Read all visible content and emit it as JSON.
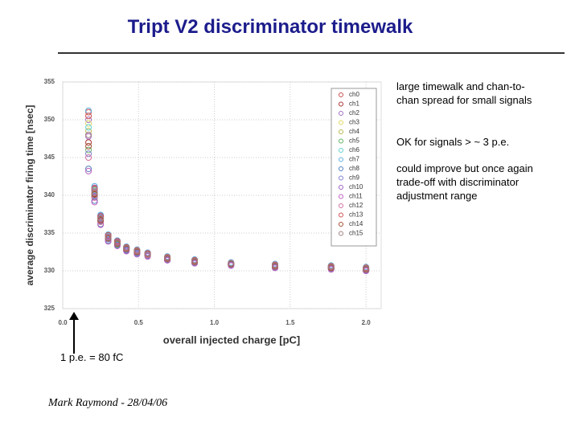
{
  "slide": {
    "title": "Tript V2 discriminator timewalk",
    "notes": [
      "large timewalk and chan-to-chan spread for small signals",
      "OK for signals > ~ 3 p.e.",
      "could improve but once again trade-off with discriminator adjustment range"
    ],
    "annotation": "1 p.e. = 80 fC",
    "footer": "Mark Raymond - 28/04/06"
  },
  "chart_data": {
    "type": "scatter",
    "x_label": "overall injected charge [pC]",
    "y_label": "average discriminator firing time [nsec]",
    "x": [
      0.17,
      0.21,
      0.25,
      0.3,
      0.36,
      0.42,
      0.49,
      0.56,
      0.69,
      0.87,
      1.11,
      1.4,
      1.77,
      2.0
    ],
    "xlim": [
      0,
      2.1
    ],
    "xticks": [
      {
        "value": 0,
        "label": "0.0"
      },
      0.5,
      {
        "value": 1,
        "label": "1.0"
      },
      1.5,
      {
        "value": 2,
        "label": "2.0"
      }
    ],
    "ylim": [
      325,
      355
    ],
    "yticks": [
      325,
      330,
      335,
      340,
      345,
      350,
      355
    ],
    "grid": true,
    "legend": "upper right",
    "series": [
      {
        "name": "ch0",
        "color": "#c85050",
        "values": [
          351,
          340.8,
          337.2,
          334.6,
          333.9,
          333.1,
          332.7,
          332.3,
          331.8,
          331.4,
          331.0,
          330.8,
          330.6,
          330.4
        ]
      },
      {
        "name": "ch1",
        "color": "#a83030",
        "values": [
          347,
          340.2,
          336.8,
          334.3,
          333.7,
          332.9,
          332.5,
          332.2,
          331.6,
          331.2,
          330.9,
          330.6,
          330.4,
          330.2
        ]
      },
      {
        "name": "ch2",
        "color": "#a070c0",
        "values": [
          350,
          341.0,
          337.3,
          334.7,
          334.0,
          333.1,
          332.7,
          332.4,
          331.8,
          331.4,
          331.1,
          330.8,
          330.6,
          330.4
        ]
      },
      {
        "name": "ch3",
        "color": "#e0d860",
        "values": [
          349.5,
          340.6,
          337.0,
          334.5,
          333.8,
          333.0,
          332.6,
          332.3,
          331.7,
          331.3,
          331.0,
          330.7,
          330.5,
          330.3
        ]
      },
      {
        "name": "ch4",
        "color": "#b8b850",
        "values": [
          348.5,
          340.4,
          336.9,
          334.4,
          333.7,
          332.9,
          332.5,
          332.2,
          331.6,
          331.2,
          330.9,
          330.6,
          330.4,
          330.2
        ]
      },
      {
        "name": "ch5",
        "color": "#60b060",
        "values": [
          346,
          339.8,
          336.5,
          334.2,
          333.5,
          332.8,
          332.4,
          332.1,
          331.5,
          331.1,
          330.8,
          330.5,
          330.3,
          330.1
        ]
      },
      {
        "name": "ch6",
        "color": "#60d0d0",
        "values": [
          349,
          340.7,
          337.1,
          334.6,
          333.9,
          333.0,
          332.6,
          332.3,
          331.7,
          331.3,
          331.0,
          330.7,
          330.5,
          330.3
        ]
      },
      {
        "name": "ch7",
        "color": "#60b0e0",
        "values": [
          351.2,
          341.2,
          337.4,
          334.8,
          334.0,
          333.2,
          332.8,
          332.4,
          331.9,
          331.5,
          331.1,
          330.9,
          330.7,
          330.5
        ]
      },
      {
        "name": "ch8",
        "color": "#5080c0",
        "values": [
          343.5,
          339.3,
          336.2,
          334.0,
          333.4,
          332.7,
          332.3,
          332.0,
          331.4,
          331.0,
          330.7,
          330.4,
          330.2,
          330.0
        ]
      },
      {
        "name": "ch9",
        "color": "#8080d0",
        "values": [
          345.5,
          339.9,
          336.6,
          334.2,
          333.6,
          332.8,
          332.4,
          332.1,
          331.5,
          331.1,
          330.8,
          330.5,
          330.3,
          330.1
        ]
      },
      {
        "name": "ch10",
        "color": "#a060c0",
        "values": [
          347.8,
          340.5,
          337.0,
          334.5,
          333.8,
          333.0,
          332.6,
          332.2,
          331.7,
          331.3,
          331.0,
          330.7,
          330.5,
          330.3
        ]
      },
      {
        "name": "ch11",
        "color": "#c060c0",
        "values": [
          343.2,
          339.1,
          336.1,
          333.9,
          333.3,
          332.6,
          332.2,
          331.9,
          331.4,
          331.0,
          330.7,
          330.4,
          330.2,
          330.0
        ]
      },
      {
        "name": "ch12",
        "color": "#d070a0",
        "values": [
          345,
          339.7,
          336.5,
          334.3,
          333.6,
          332.9,
          332.5,
          332.1,
          331.6,
          331.2,
          330.9,
          330.6,
          330.4,
          330.2
        ]
      },
      {
        "name": "ch13",
        "color": "#d05050",
        "values": [
          350.5,
          340.9,
          337.2,
          334.7,
          333.9,
          333.1,
          332.7,
          332.3,
          331.8,
          331.4,
          331.0,
          330.8,
          330.6,
          330.4
        ]
      },
      {
        "name": "ch14",
        "color": "#a05030",
        "values": [
          346.5,
          340.1,
          336.7,
          334.3,
          333.6,
          332.9,
          332.5,
          332.2,
          331.6,
          331.2,
          330.9,
          330.6,
          330.4,
          330.2
        ]
      },
      {
        "name": "ch15",
        "color": "#a08080",
        "values": [
          348,
          340.3,
          336.9,
          334.4,
          333.7,
          333.0,
          332.6,
          332.2,
          331.7,
          331.3,
          331.0,
          330.7,
          330.5,
          330.3
        ]
      }
    ]
  }
}
